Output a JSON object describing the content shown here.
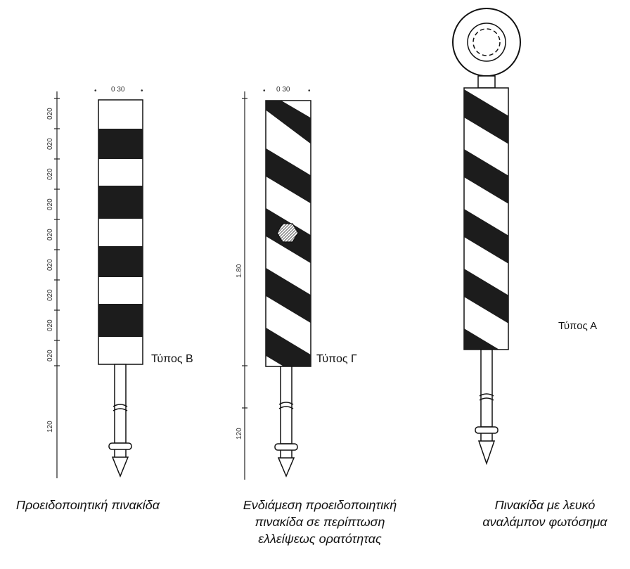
{
  "dimensions": {
    "width_label": "0 30",
    "band_label": "020",
    "total_height_label": "1.80",
    "stake_label": "120"
  },
  "types": {
    "b": "Τύπος Β",
    "g": "Τύπος Γ",
    "a": "Τύπος Α"
  },
  "captions": {
    "left": "Προειδοποιητική  πινακίδα",
    "middle_lines": [
      "Ενδιάμεση προειδοποιητική",
      "πινακίδα σε περίπτωση",
      "ελλείψεως ορατότητας"
    ],
    "right_lines": [
      "Πινακίδα με λευκό",
      "αναλάμπον φωτόσημα"
    ]
  }
}
